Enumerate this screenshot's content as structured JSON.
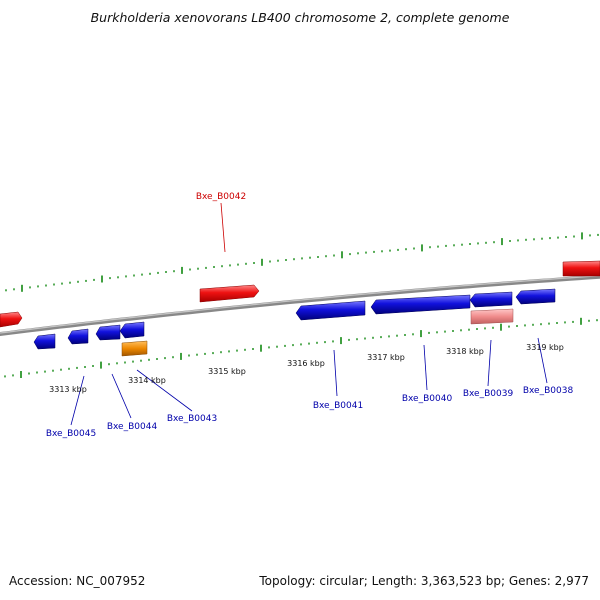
{
  "title": "Burkholderia xenovorans LB400 chromosome 2, complete genome",
  "footer": {
    "accession": "Accession: NC_007952",
    "summary": "Topology: circular; Length: 3,363,523 bp; Genes: 2,977"
  },
  "colors": {
    "backbone": "#888888",
    "forward_gene": "#ee1111",
    "reverse_gene": "#1111dd",
    "pseudo_gene": "#f08c8c",
    "rna_gene": "#ee8800",
    "tick": "#118811",
    "forward_label": "#cc0000",
    "reverse_label": "#0000aa"
  },
  "scale_labels": [
    "3313 kbp",
    "3314 kbp",
    "3315 kbp",
    "3316 kbp",
    "3317 kbp",
    "3318 kbp",
    "3319 kbp"
  ],
  "gene_labels": [
    {
      "id": "Bxe_B0042",
      "strand": "forward"
    },
    {
      "id": "Bxe_B0045",
      "strand": "reverse"
    },
    {
      "id": "Bxe_B0044",
      "strand": "reverse"
    },
    {
      "id": "Bxe_B0043",
      "strand": "reverse"
    },
    {
      "id": "Bxe_B0041",
      "strand": "reverse"
    },
    {
      "id": "Bxe_B0040",
      "strand": "reverse"
    },
    {
      "id": "Bxe_B0039",
      "strand": "reverse"
    },
    {
      "id": "Bxe_B0038",
      "strand": "reverse"
    }
  ]
}
